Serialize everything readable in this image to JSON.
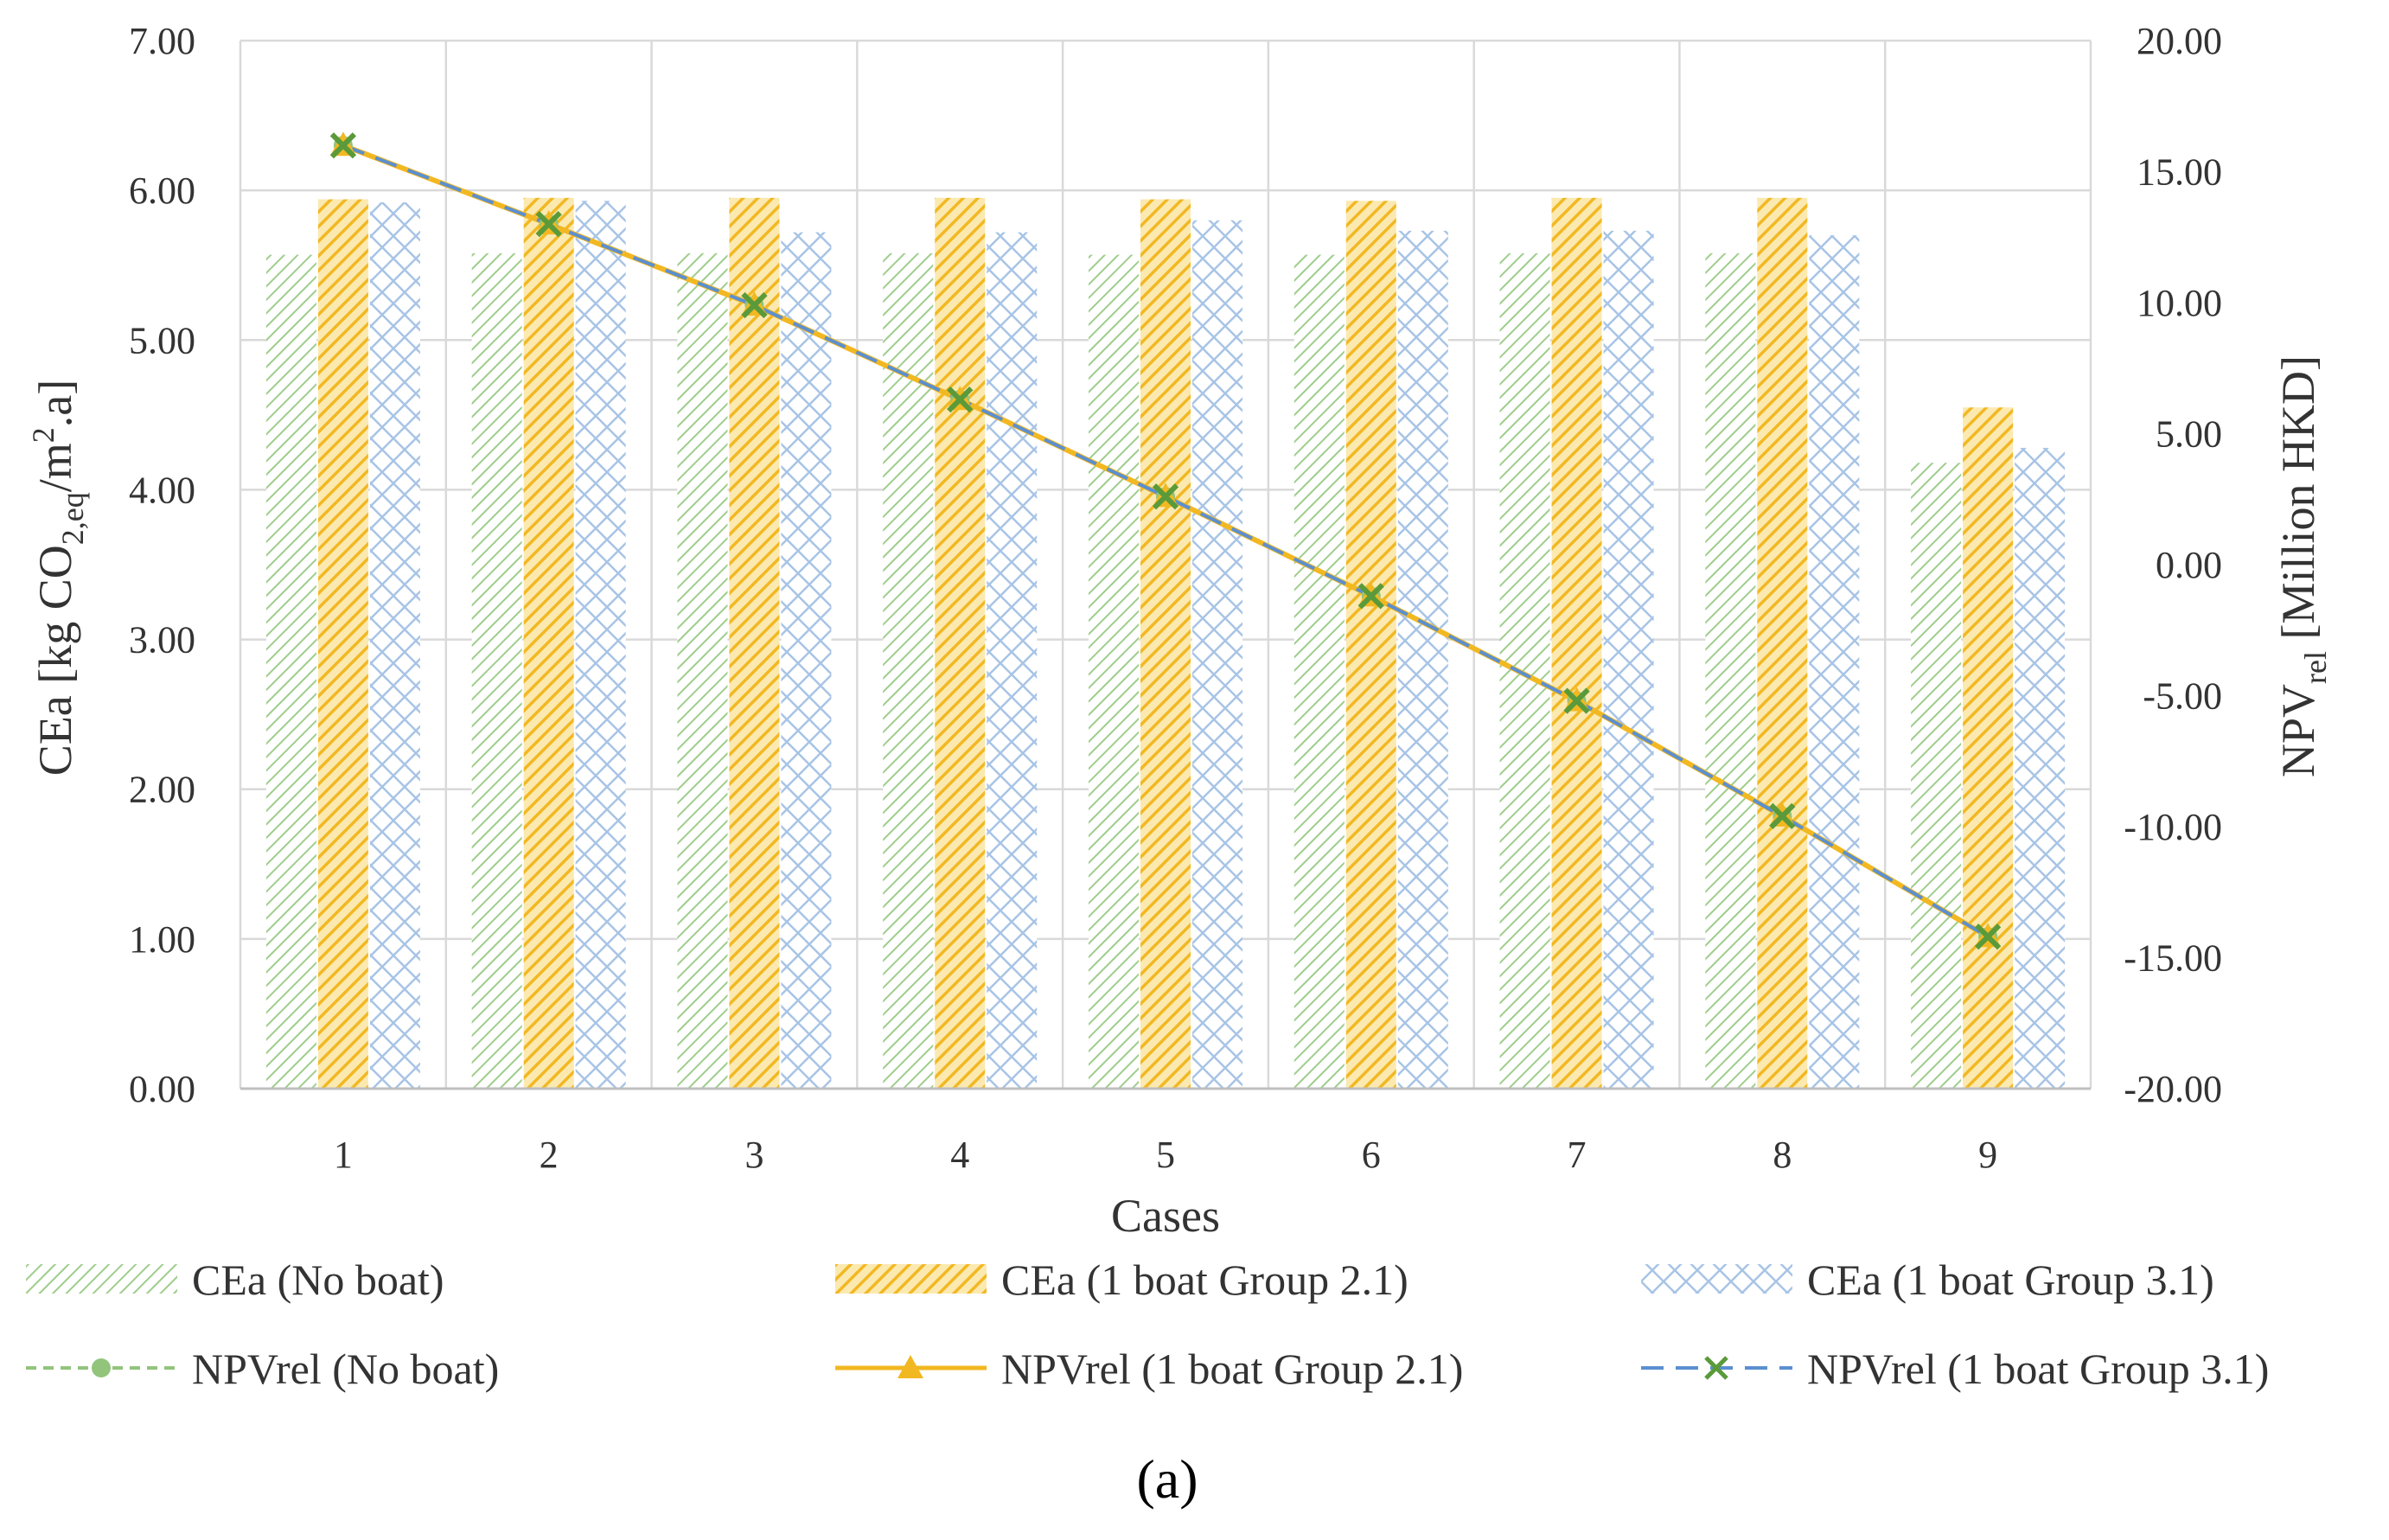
{
  "chart_data": {
    "type": "bar",
    "caption": "(a)",
    "categories": [
      "1",
      "2",
      "3",
      "4",
      "5",
      "6",
      "7",
      "8",
      "9"
    ],
    "xlabel": "Cases",
    "ylabel_left": {
      "main": "CEa [kg CO",
      "sub": "2,eq",
      "mid": "/m",
      "sup": "2",
      "end": ".a]"
    },
    "ylabel_right": {
      "main": "NPV",
      "sub": "rel",
      "end": " [Million HKD]"
    },
    "ylim_left": [
      0,
      7
    ],
    "ylim_right": [
      -20,
      20
    ],
    "yticks_left": [
      "0.00",
      "1.00",
      "2.00",
      "3.00",
      "4.00",
      "5.00",
      "6.00",
      "7.00"
    ],
    "yticks_right": [
      "-20.00",
      "-15.00",
      "-10.00",
      "-5.00",
      "0.00",
      "5.00",
      "10.00",
      "15.00",
      "20.00"
    ],
    "grid": true,
    "bar_series": [
      {
        "name": "CEa (No boat)",
        "pattern": "diag-green",
        "color": "#9fcd8c",
        "values": [
          5.57,
          5.58,
          5.58,
          5.58,
          5.57,
          5.57,
          5.58,
          5.58,
          4.18
        ]
      },
      {
        "name": "CEa (1 boat Group 2.1)",
        "pattern": "diag-orange",
        "color": "#f2b822",
        "values": [
          5.94,
          5.95,
          5.95,
          5.95,
          5.94,
          5.93,
          5.95,
          5.95,
          4.55
        ]
      },
      {
        "name": "CEa (1 boat Group 3.1)",
        "pattern": "cross-blue",
        "color": "#a8c4e6",
        "values": [
          5.92,
          5.93,
          5.72,
          5.72,
          5.8,
          5.73,
          5.73,
          5.7,
          4.28
        ]
      }
    ],
    "line_series": [
      {
        "name": "NPVrel (No boat)",
        "color": "#92c47c",
        "marker": "circle",
        "dash": "dashed",
        "values": [
          16.0,
          13.0,
          9.9,
          6.3,
          2.6,
          -1.2,
          -5.2,
          -9.6,
          -14.2
        ]
      },
      {
        "name": "NPVrel (1 boat Group 2.1)",
        "color": "#f2b822",
        "marker": "triangle",
        "dash": "solid",
        "values": [
          16.0,
          13.0,
          9.9,
          6.3,
          2.6,
          -1.2,
          -5.2,
          -9.6,
          -14.2
        ]
      },
      {
        "name": "NPVrel (1 boat Group 3.1)",
        "color": "#5b8fd0",
        "marker": "x",
        "dash": "longdash",
        "marker_color": "#5a9a3a",
        "values": [
          16.0,
          13.0,
          9.9,
          6.3,
          2.6,
          -1.2,
          -5.2,
          -9.6,
          -14.2
        ]
      }
    ],
    "legend_position": "bottom"
  }
}
